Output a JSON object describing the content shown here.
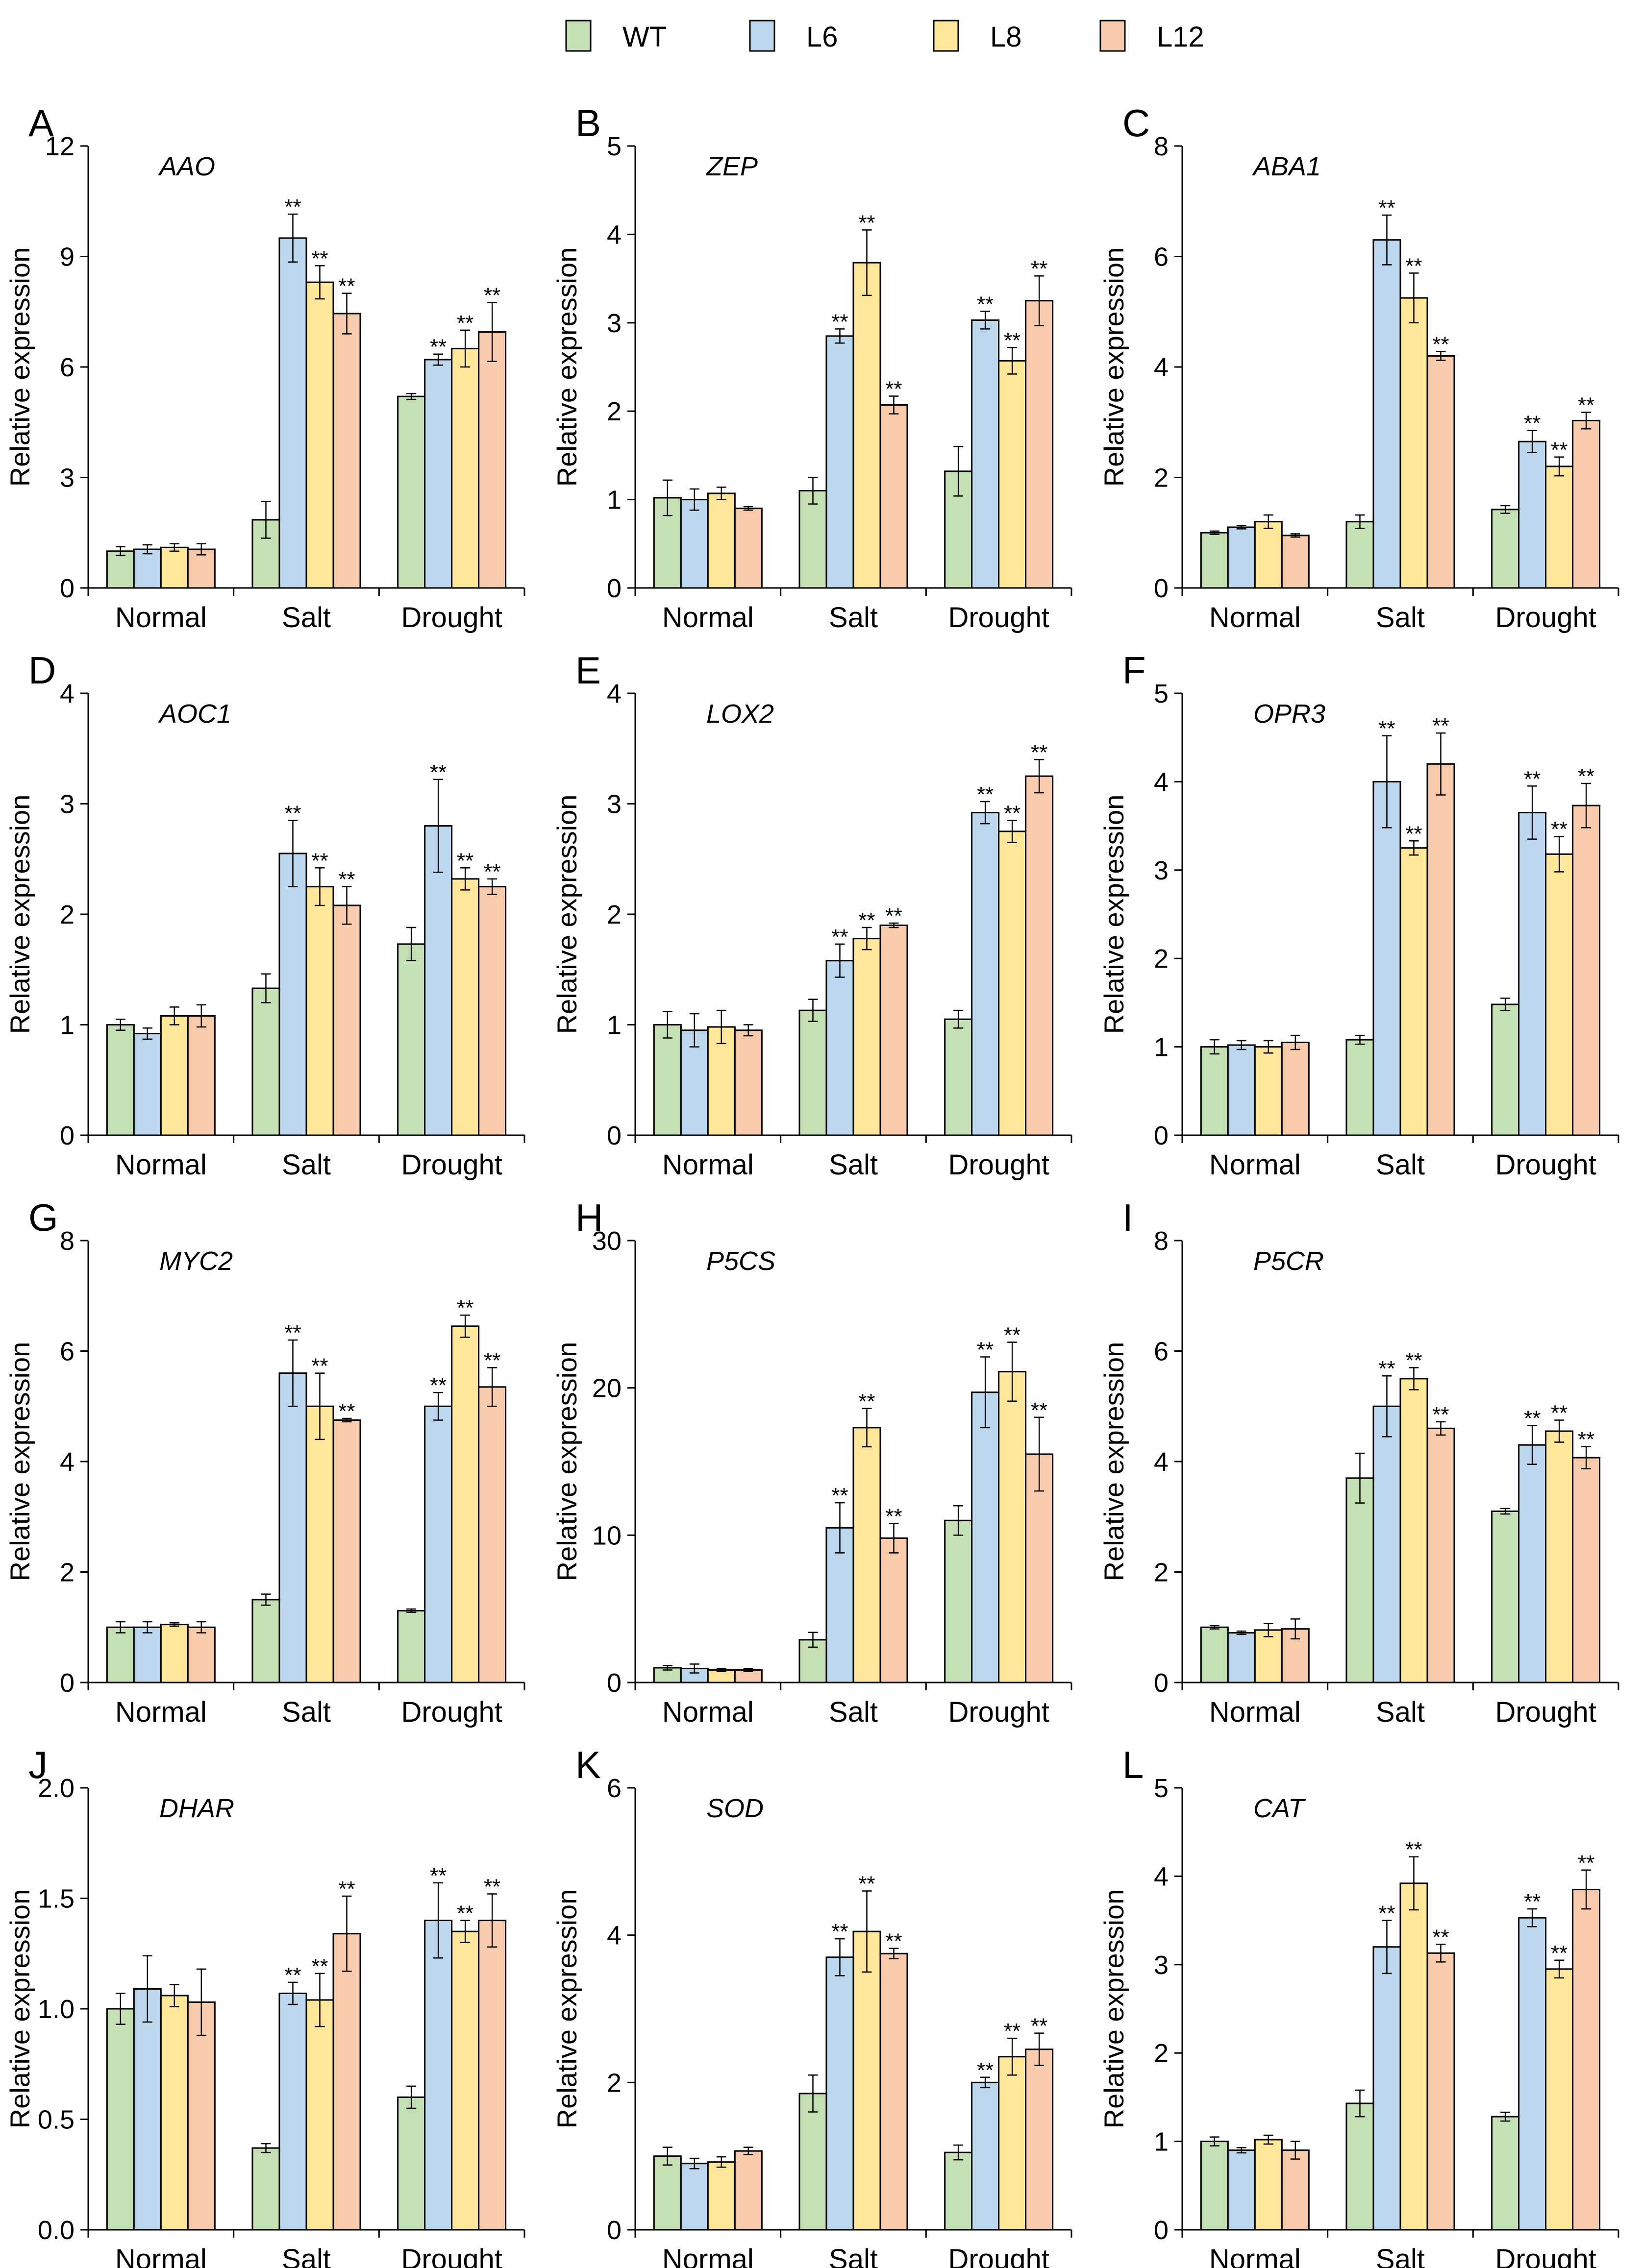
{
  "chart_data": {
    "type": "bar",
    "legend": {
      "position": "top-center",
      "entries": [
        {
          "name": "WT",
          "color": "#c5e0b4"
        },
        {
          "name": "L6",
          "color": "#bdd7ee"
        },
        {
          "name": "L8",
          "color": "#ffe699"
        },
        {
          "name": "L12",
          "color": "#f8cbad"
        }
      ]
    },
    "ylabel": "Relative expression",
    "categories": [
      "Normal",
      "Salt",
      "Drought"
    ],
    "significance_label": "**",
    "panels": [
      {
        "label": "A",
        "gene": "AAO",
        "ylim": [
          0,
          12
        ],
        "ticks": [
          "0",
          "3",
          "6",
          "9",
          "12"
        ],
        "series": [
          {
            "name": "WT",
            "values": [
              1.0,
              1.85,
              5.2
            ],
            "errors": [
              0.12,
              0.5,
              0.08
            ]
          },
          {
            "name": "L6",
            "values": [
              1.05,
              9.5,
              6.2
            ],
            "errors": [
              0.12,
              0.65,
              0.15
            ]
          },
          {
            "name": "L8",
            "values": [
              1.1,
              8.3,
              6.5
            ],
            "errors": [
              0.1,
              0.45,
              0.5
            ]
          },
          {
            "name": "L12",
            "values": [
              1.05,
              7.45,
              6.95
            ],
            "errors": [
              0.15,
              0.55,
              0.8
            ]
          }
        ],
        "significant": [
          [
            false,
            false,
            false
          ],
          [
            false,
            true,
            true
          ],
          [
            false,
            true,
            true
          ],
          [
            false,
            true,
            true
          ]
        ]
      },
      {
        "label": "B",
        "gene": "ZEP",
        "ylim": [
          0,
          5
        ],
        "ticks": [
          "0",
          "1",
          "2",
          "3",
          "4",
          "5"
        ],
        "series": [
          {
            "name": "WT",
            "values": [
              1.02,
              1.1,
              1.32
            ],
            "errors": [
              0.2,
              0.15,
              0.28
            ]
          },
          {
            "name": "L6",
            "values": [
              1.0,
              2.85,
              3.03
            ],
            "errors": [
              0.12,
              0.08,
              0.1
            ]
          },
          {
            "name": "L8",
            "values": [
              1.07,
              3.68,
              2.57
            ],
            "errors": [
              0.07,
              0.37,
              0.15
            ]
          },
          {
            "name": "L12",
            "values": [
              0.9,
              2.07,
              3.25
            ],
            "errors": [
              0.02,
              0.1,
              0.28
            ]
          }
        ],
        "significant": [
          [
            false,
            false,
            false
          ],
          [
            false,
            true,
            true
          ],
          [
            false,
            true,
            true
          ],
          [
            false,
            true,
            true
          ]
        ]
      },
      {
        "label": "C",
        "gene": "ABA1",
        "ylim": [
          0,
          8
        ],
        "ticks": [
          "0",
          "2",
          "4",
          "6",
          "8"
        ],
        "series": [
          {
            "name": "WT",
            "values": [
              1.0,
              1.2,
              1.42
            ],
            "errors": [
              0.03,
              0.12,
              0.07
            ]
          },
          {
            "name": "L6",
            "values": [
              1.1,
              6.3,
              2.65
            ],
            "errors": [
              0.03,
              0.45,
              0.2
            ]
          },
          {
            "name": "L8",
            "values": [
              1.2,
              5.25,
              2.2
            ],
            "errors": [
              0.12,
              0.45,
              0.17
            ]
          },
          {
            "name": "L12",
            "values": [
              0.95,
              4.2,
              3.03
            ],
            "errors": [
              0.03,
              0.08,
              0.15
            ]
          }
        ],
        "significant": [
          [
            false,
            false,
            false
          ],
          [
            false,
            true,
            true
          ],
          [
            false,
            true,
            true
          ],
          [
            false,
            true,
            true
          ]
        ]
      },
      {
        "label": "D",
        "gene": "AOC1",
        "ylim": [
          0,
          4
        ],
        "ticks": [
          "0",
          "1",
          "2",
          "3",
          "4"
        ],
        "series": [
          {
            "name": "WT",
            "values": [
              1.0,
              1.33,
              1.73
            ],
            "errors": [
              0.05,
              0.13,
              0.15
            ]
          },
          {
            "name": "L6",
            "values": [
              0.92,
              2.55,
              2.8
            ],
            "errors": [
              0.05,
              0.3,
              0.42
            ]
          },
          {
            "name": "L8",
            "values": [
              1.08,
              2.25,
              2.32
            ],
            "errors": [
              0.08,
              0.17,
              0.1
            ]
          },
          {
            "name": "L12",
            "values": [
              1.08,
              2.08,
              2.25
            ],
            "errors": [
              0.1,
              0.17,
              0.07
            ]
          }
        ],
        "significant": [
          [
            false,
            false,
            false
          ],
          [
            false,
            true,
            true
          ],
          [
            false,
            true,
            true
          ],
          [
            false,
            true,
            true
          ]
        ]
      },
      {
        "label": "E",
        "gene": "LOX2",
        "ylim": [
          0,
          4
        ],
        "ticks": [
          "0",
          "1",
          "2",
          "3",
          "4"
        ],
        "series": [
          {
            "name": "WT",
            "values": [
              1.0,
              1.13,
              1.05
            ],
            "errors": [
              0.12,
              0.1,
              0.08
            ]
          },
          {
            "name": "L6",
            "values": [
              0.95,
              1.58,
              2.92
            ],
            "errors": [
              0.15,
              0.15,
              0.1
            ]
          },
          {
            "name": "L8",
            "values": [
              0.98,
              1.78,
              2.75
            ],
            "errors": [
              0.15,
              0.1,
              0.1
            ]
          },
          {
            "name": "L12",
            "values": [
              0.95,
              1.9,
              3.25
            ],
            "errors": [
              0.05,
              0.02,
              0.15
            ]
          }
        ],
        "significant": [
          [
            false,
            false,
            false
          ],
          [
            false,
            true,
            true
          ],
          [
            false,
            true,
            true
          ],
          [
            false,
            true,
            true
          ]
        ]
      },
      {
        "label": "F",
        "gene": "OPR3",
        "ylim": [
          0,
          5
        ],
        "ticks": [
          "0",
          "1",
          "2",
          "3",
          "4",
          "5"
        ],
        "series": [
          {
            "name": "WT",
            "values": [
              1.0,
              1.08,
              1.48
            ],
            "errors": [
              0.08,
              0.05,
              0.07
            ]
          },
          {
            "name": "L6",
            "values": [
              1.02,
              4.0,
              3.65
            ],
            "errors": [
              0.05,
              0.52,
              0.3
            ]
          },
          {
            "name": "L8",
            "values": [
              1.0,
              3.25,
              3.18
            ],
            "errors": [
              0.07,
              0.08,
              0.2
            ]
          },
          {
            "name": "L12",
            "values": [
              1.05,
              4.2,
              3.73
            ],
            "errors": [
              0.08,
              0.35,
              0.25
            ]
          }
        ],
        "significant": [
          [
            false,
            false,
            false
          ],
          [
            false,
            true,
            true
          ],
          [
            false,
            true,
            true
          ],
          [
            false,
            true,
            true
          ]
        ]
      },
      {
        "label": "G",
        "gene": "MYC2",
        "ylim": [
          0,
          8
        ],
        "ticks": [
          "0",
          "2",
          "4",
          "6",
          "8"
        ],
        "series": [
          {
            "name": "WT",
            "values": [
              1.0,
              1.5,
              1.3
            ],
            "errors": [
              0.1,
              0.1,
              0.03
            ]
          },
          {
            "name": "L6",
            "values": [
              1.0,
              5.6,
              5.0
            ],
            "errors": [
              0.1,
              0.6,
              0.25
            ]
          },
          {
            "name": "L8",
            "values": [
              1.05,
              5.0,
              6.45
            ],
            "errors": [
              0.03,
              0.6,
              0.2
            ]
          },
          {
            "name": "L12",
            "values": [
              1.0,
              4.75,
              5.35
            ],
            "errors": [
              0.1,
              0.03,
              0.35
            ]
          }
        ],
        "significant": [
          [
            false,
            false,
            false
          ],
          [
            false,
            true,
            true
          ],
          [
            false,
            true,
            true
          ],
          [
            false,
            true,
            true
          ]
        ]
      },
      {
        "label": "H",
        "gene": "P5CS",
        "ylim": [
          0,
          30
        ],
        "ticks": [
          "0",
          "10",
          "20",
          "30"
        ],
        "series": [
          {
            "name": "WT",
            "values": [
              1.0,
              2.9,
              11.0
            ],
            "errors": [
              0.15,
              0.5,
              1.0
            ]
          },
          {
            "name": "L6",
            "values": [
              0.95,
              10.5,
              19.7
            ],
            "errors": [
              0.3,
              1.7,
              2.4
            ]
          },
          {
            "name": "L8",
            "values": [
              0.85,
              17.3,
              21.1
            ],
            "errors": [
              0.1,
              1.3,
              2.0
            ]
          },
          {
            "name": "L12",
            "values": [
              0.85,
              9.8,
              15.5
            ],
            "errors": [
              0.1,
              1.0,
              2.5
            ]
          }
        ],
        "significant": [
          [
            false,
            false,
            false
          ],
          [
            false,
            true,
            true
          ],
          [
            false,
            true,
            true
          ],
          [
            false,
            true,
            true
          ]
        ]
      },
      {
        "label": "I",
        "gene": "P5CR",
        "ylim": [
          0,
          8
        ],
        "ticks": [
          "0",
          "2",
          "4",
          "6",
          "8"
        ],
        "series": [
          {
            "name": "WT",
            "values": [
              1.0,
              3.7,
              3.1
            ],
            "errors": [
              0.03,
              0.45,
              0.05
            ]
          },
          {
            "name": "L6",
            "values": [
              0.9,
              5.0,
              4.3
            ],
            "errors": [
              0.03,
              0.55,
              0.35
            ]
          },
          {
            "name": "L8",
            "values": [
              0.95,
              5.5,
              4.55
            ],
            "errors": [
              0.12,
              0.2,
              0.2
            ]
          },
          {
            "name": "L12",
            "values": [
              0.97,
              4.6,
              4.07
            ],
            "errors": [
              0.18,
              0.12,
              0.2
            ]
          }
        ],
        "significant": [
          [
            false,
            false,
            false
          ],
          [
            false,
            true,
            true
          ],
          [
            false,
            true,
            true
          ],
          [
            false,
            true,
            true
          ]
        ]
      },
      {
        "label": "J",
        "gene": "DHAR",
        "ylim": [
          0,
          2.0
        ],
        "ticks": [
          "0.0",
          "0.5",
          "1.0",
          "1.5",
          "2.0"
        ],
        "series": [
          {
            "name": "WT",
            "values": [
              1.0,
              0.37,
              0.6
            ],
            "errors": [
              0.07,
              0.02,
              0.05
            ]
          },
          {
            "name": "L6",
            "values": [
              1.09,
              1.07,
              1.4
            ],
            "errors": [
              0.15,
              0.05,
              0.17
            ]
          },
          {
            "name": "L8",
            "values": [
              1.06,
              1.04,
              1.35
            ],
            "errors": [
              0.05,
              0.12,
              0.05
            ]
          },
          {
            "name": "L12",
            "values": [
              1.03,
              1.34,
              1.4
            ],
            "errors": [
              0.15,
              0.17,
              0.12
            ]
          }
        ],
        "significant": [
          [
            false,
            false,
            false
          ],
          [
            false,
            true,
            true
          ],
          [
            false,
            true,
            true
          ],
          [
            false,
            true,
            true
          ]
        ]
      },
      {
        "label": "K",
        "gene": "SOD",
        "ylim": [
          0,
          6
        ],
        "ticks": [
          "0",
          "2",
          "4",
          "6"
        ],
        "series": [
          {
            "name": "WT",
            "values": [
              1.0,
              1.85,
              1.05
            ],
            "errors": [
              0.12,
              0.25,
              0.1
            ]
          },
          {
            "name": "L6",
            "values": [
              0.9,
              3.7,
              2.0
            ],
            "errors": [
              0.07,
              0.25,
              0.07
            ]
          },
          {
            "name": "L8",
            "values": [
              0.92,
              4.05,
              2.35
            ],
            "errors": [
              0.07,
              0.55,
              0.25
            ]
          },
          {
            "name": "L12",
            "values": [
              1.07,
              3.75,
              2.45
            ],
            "errors": [
              0.05,
              0.07,
              0.22
            ]
          }
        ],
        "significant": [
          [
            false,
            false,
            false
          ],
          [
            false,
            true,
            true
          ],
          [
            false,
            true,
            true
          ],
          [
            false,
            true,
            true
          ]
        ]
      },
      {
        "label": "L",
        "gene": "CAT",
        "ylim": [
          0,
          5
        ],
        "ticks": [
          "0",
          "1",
          "2",
          "3",
          "4",
          "5"
        ],
        "series": [
          {
            "name": "WT",
            "values": [
              1.0,
              1.43,
              1.28
            ],
            "errors": [
              0.05,
              0.15,
              0.05
            ]
          },
          {
            "name": "L6",
            "values": [
              0.9,
              3.2,
              3.53
            ],
            "errors": [
              0.03,
              0.3,
              0.1
            ]
          },
          {
            "name": "L8",
            "values": [
              1.02,
              3.92,
              2.95
            ],
            "errors": [
              0.05,
              0.3,
              0.1
            ]
          },
          {
            "name": "L12",
            "values": [
              0.9,
              3.13,
              3.85
            ],
            "errors": [
              0.1,
              0.1,
              0.22
            ]
          }
        ],
        "significant": [
          [
            false,
            false,
            false
          ],
          [
            false,
            true,
            true
          ],
          [
            false,
            true,
            true
          ],
          [
            false,
            true,
            true
          ]
        ]
      }
    ]
  }
}
